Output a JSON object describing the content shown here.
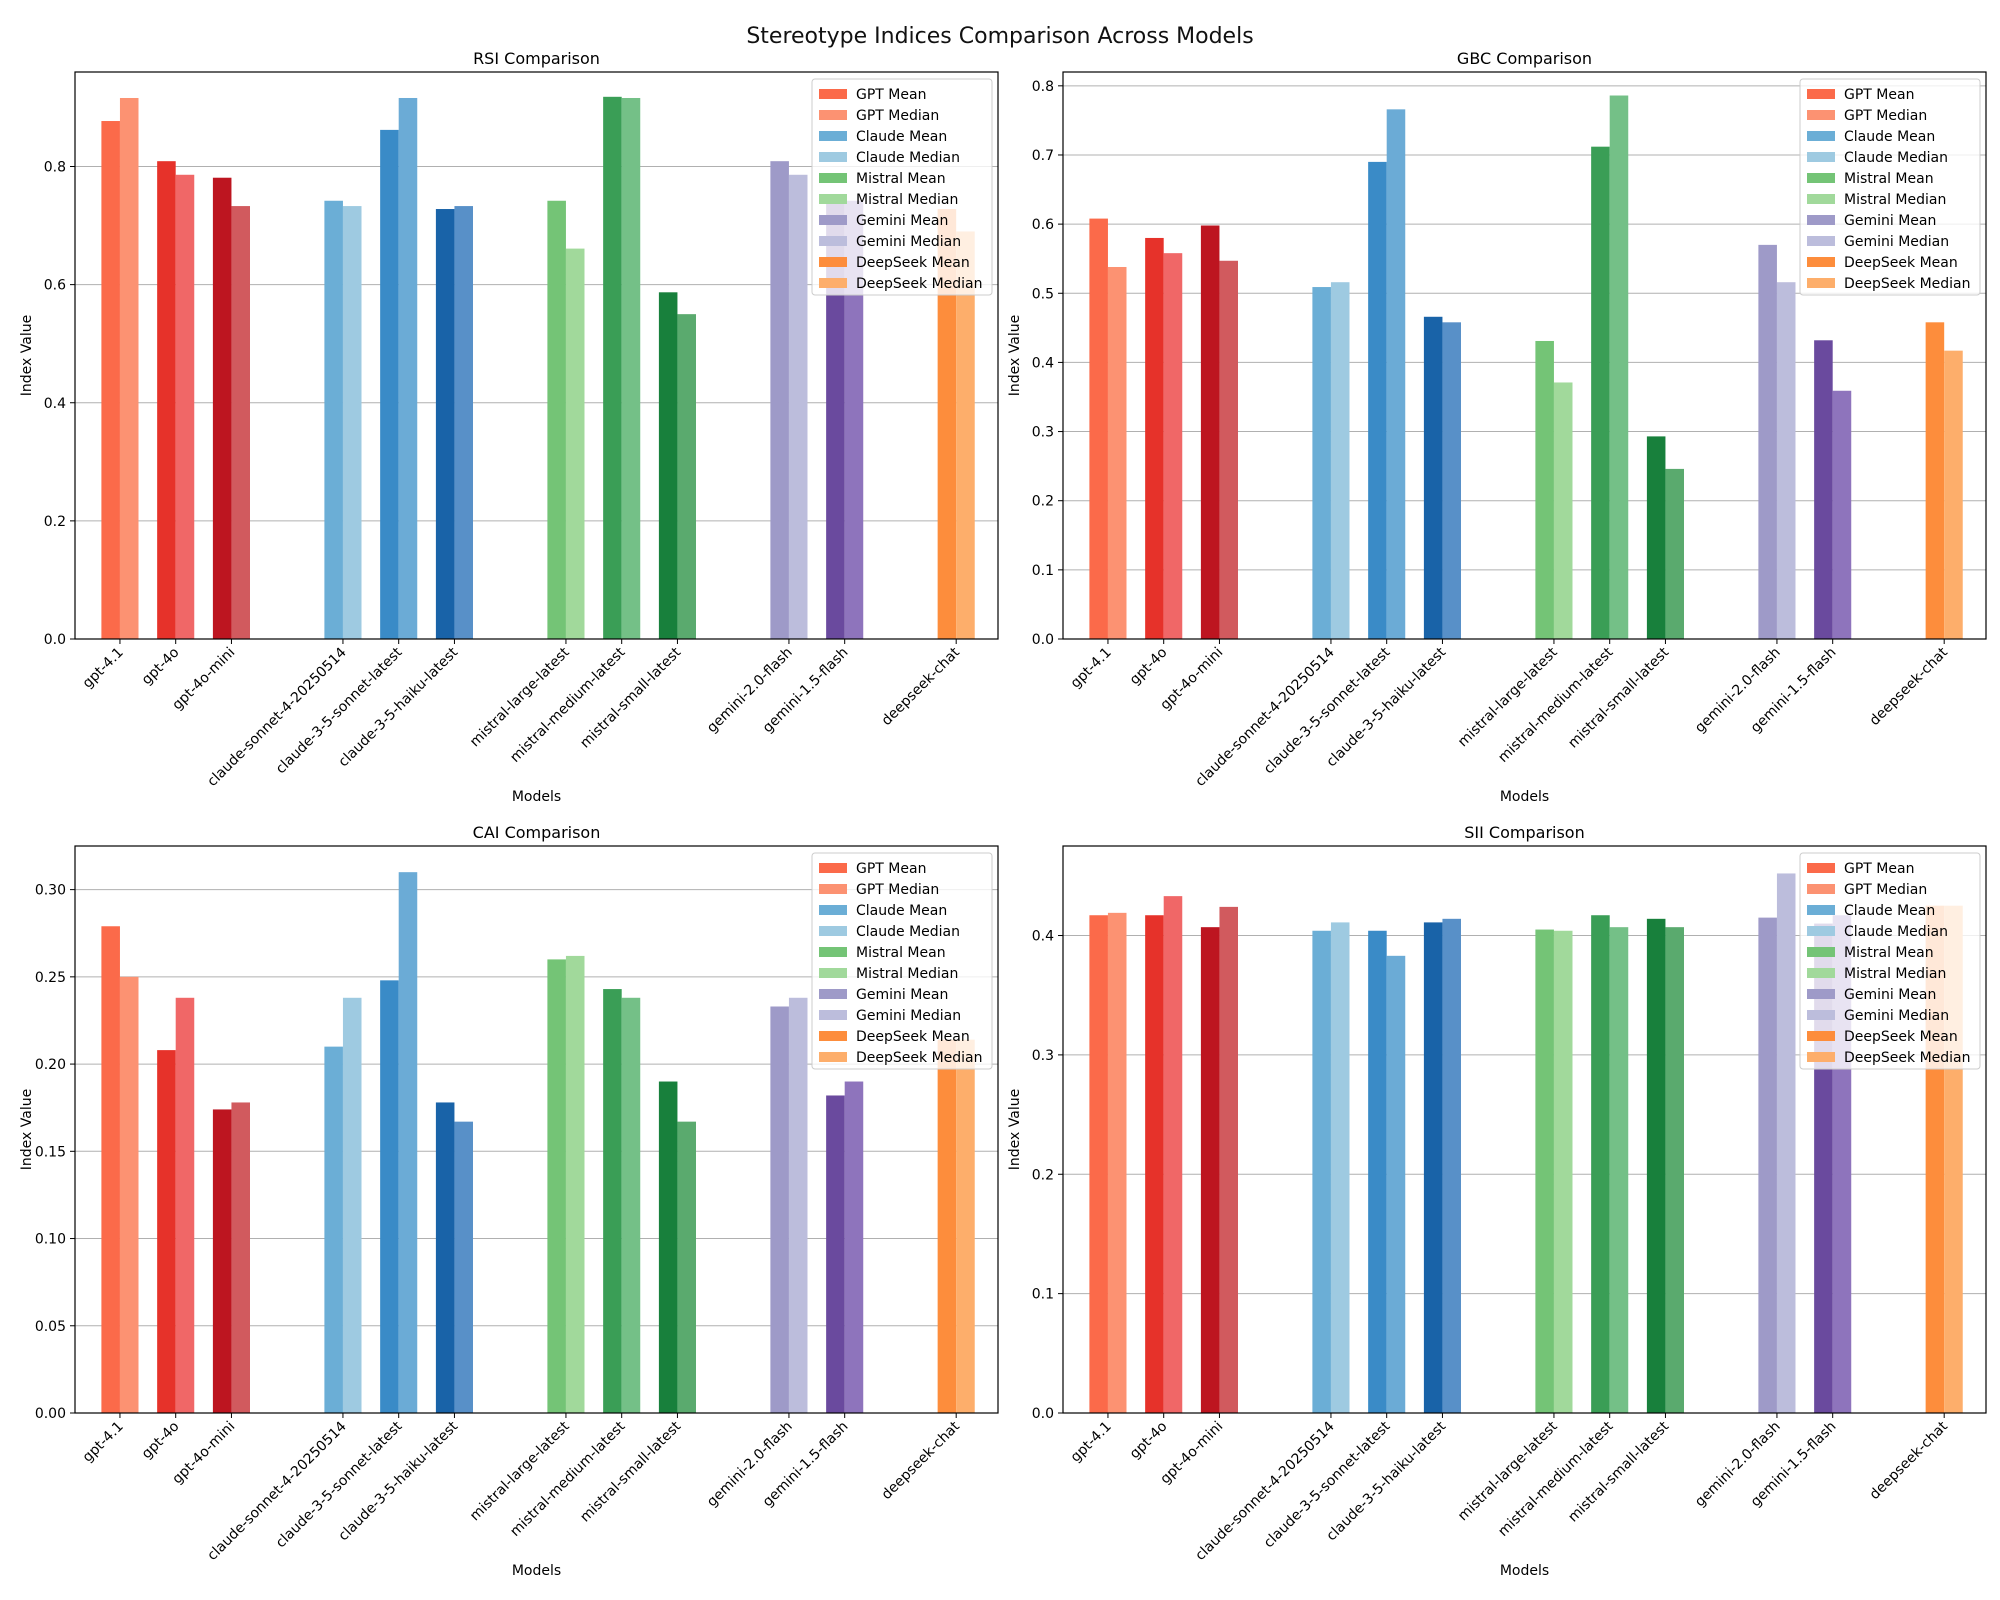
{
  "title": "Stereotype Indices Comparison Across Models",
  "models": [
    "gpt-4.1",
    "gpt-4o",
    "gpt-4o-mini",
    "claude-sonnet-4-20250514",
    "claude-3-5-sonnet-latest",
    "claude-3-5-haiku-latest",
    "mistral-large-latest",
    "mistral-medium-latest",
    "mistral-small-latest",
    "gemini-2.0-flash",
    "gemini-1.5-flash",
    "deepseek-chat"
  ],
  "legend": [
    "GPT Mean",
    "GPT Median",
    "Claude Mean",
    "Claude Median",
    "Mistral Mean",
    "Mistral Median",
    "Gemini Mean",
    "Gemini Median",
    "DeepSeek Mean",
    "DeepSeek Median"
  ],
  "colors": {
    "legend": [
      "#fb6a4a",
      "#fc9272",
      "#6baed6",
      "#9ecae1",
      "#74c476",
      "#a1d99b",
      "#9e9ac8",
      "#bcbddc",
      "#fd8d3c",
      "#fdae6b"
    ],
    "mean": [
      "#fb6a4a",
      "#e6322a",
      "#bd1520",
      "#6baed6",
      "#3a8bc7",
      "#1963a8",
      "#74c476",
      "#3a9e56",
      "#18803c",
      "#9e9ac8",
      "#6a4a9e",
      "#fd8d3c"
    ],
    "median": [
      "#fc9272",
      "#f06767",
      "#d15a5e",
      "#9ecae1",
      "#6babd6",
      "#5890c8",
      "#a1d99b",
      "#74c087",
      "#5aaa6e",
      "#bcbddc",
      "#8e74bc",
      "#fdae6b"
    ]
  },
  "chart_data": [
    {
      "type": "bar",
      "title": "RSI Comparison",
      "xlabel": "Models",
      "ylabel": "Index Value",
      "ylim": [
        0,
        0.96
      ],
      "ticks": [
        0.0,
        0.2,
        0.4,
        0.6,
        0.8
      ],
      "tick_labels": [
        "0.0",
        "0.2",
        "0.4",
        "0.6",
        "0.8"
      ],
      "categories": [
        "gpt-4.1",
        "gpt-4o",
        "gpt-4o-mini",
        "claude-sonnet-4-20250514",
        "claude-3-5-sonnet-latest",
        "claude-3-5-haiku-latest",
        "mistral-large-latest",
        "mistral-medium-latest",
        "mistral-small-latest",
        "gemini-2.0-flash",
        "gemini-1.5-flash",
        "deepseek-chat"
      ],
      "series": [
        {
          "name": "Mean",
          "values": [
            0.877,
            0.809,
            0.781,
            0.742,
            0.862,
            0.728,
            0.742,
            0.918,
            0.587,
            0.809,
            0.742,
            0.728
          ]
        },
        {
          "name": "Median",
          "values": [
            0.916,
            0.786,
            0.733,
            0.733,
            0.916,
            0.733,
            0.661,
            0.916,
            0.55,
            0.786,
            0.742,
            0.69
          ]
        }
      ]
    },
    {
      "type": "bar",
      "title": "GBC Comparison",
      "xlabel": "Models",
      "ylabel": "Index Value",
      "ylim": [
        0,
        0.82
      ],
      "ticks": [
        0.0,
        0.1,
        0.2,
        0.3,
        0.4,
        0.5,
        0.6,
        0.7,
        0.8
      ],
      "tick_labels": [
        "0.0",
        "0.1",
        "0.2",
        "0.3",
        "0.4",
        "0.5",
        "0.6",
        "0.7",
        "0.8"
      ],
      "categories": [
        "gpt-4.1",
        "gpt-4o",
        "gpt-4o-mini",
        "claude-sonnet-4-20250514",
        "claude-3-5-sonnet-latest",
        "claude-3-5-haiku-latest",
        "mistral-large-latest",
        "mistral-medium-latest",
        "mistral-small-latest",
        "gemini-2.0-flash",
        "gemini-1.5-flash",
        "deepseek-chat"
      ],
      "series": [
        {
          "name": "Mean",
          "values": [
            0.608,
            0.58,
            0.598,
            0.509,
            0.69,
            0.466,
            0.431,
            0.712,
            0.293,
            0.57,
            0.432,
            0.458
          ]
        },
        {
          "name": "Median",
          "values": [
            0.538,
            0.558,
            0.547,
            0.516,
            0.766,
            0.458,
            0.371,
            0.786,
            0.246,
            0.516,
            0.359,
            0.417
          ]
        }
      ]
    },
    {
      "type": "bar",
      "title": "CAI Comparison",
      "xlabel": "Models",
      "ylabel": "Index Value",
      "ylim": [
        0,
        0.325
      ],
      "ticks": [
        0.0,
        0.05,
        0.1,
        0.15,
        0.2,
        0.25,
        0.3
      ],
      "tick_labels": [
        "0.00",
        "0.05",
        "0.10",
        "0.15",
        "0.20",
        "0.25",
        "0.30"
      ],
      "categories": [
        "gpt-4.1",
        "gpt-4o",
        "gpt-4o-mini",
        "claude-sonnet-4-20250514",
        "claude-3-5-sonnet-latest",
        "claude-3-5-haiku-latest",
        "mistral-large-latest",
        "mistral-medium-latest",
        "mistral-small-latest",
        "gemini-2.0-flash",
        "gemini-1.5-flash",
        "deepseek-chat"
      ],
      "series": [
        {
          "name": "Mean",
          "values": [
            0.279,
            0.208,
            0.174,
            0.21,
            0.248,
            0.178,
            0.26,
            0.243,
            0.19,
            0.233,
            0.182,
            0.214
          ]
        },
        {
          "name": "Median",
          "values": [
            0.25,
            0.238,
            0.178,
            0.238,
            0.31,
            0.167,
            0.262,
            0.238,
            0.167,
            0.238,
            0.19,
            0.214
          ]
        }
      ]
    },
    {
      "type": "bar",
      "title": "SII Comparison",
      "xlabel": "Models",
      "ylabel": "Index Value",
      "ylim": [
        0,
        0.475
      ],
      "ticks": [
        0.0,
        0.1,
        0.2,
        0.3,
        0.4
      ],
      "tick_labels": [
        "0.0",
        "0.1",
        "0.2",
        "0.3",
        "0.4"
      ],
      "categories": [
        "gpt-4.1",
        "gpt-4o",
        "gpt-4o-mini",
        "claude-sonnet-4-20250514",
        "claude-3-5-sonnet-latest",
        "claude-3-5-haiku-latest",
        "mistral-large-latest",
        "mistral-medium-latest",
        "mistral-small-latest",
        "gemini-2.0-flash",
        "gemini-1.5-flash",
        "deepseek-chat"
      ],
      "series": [
        {
          "name": "Mean",
          "values": [
            0.417,
            0.417,
            0.407,
            0.404,
            0.404,
            0.411,
            0.405,
            0.417,
            0.414,
            0.415,
            0.41,
            0.425
          ]
        },
        {
          "name": "Median",
          "values": [
            0.419,
            0.433,
            0.424,
            0.411,
            0.383,
            0.414,
            0.404,
            0.407,
            0.407,
            0.452,
            0.417,
            0.425
          ]
        }
      ]
    }
  ]
}
